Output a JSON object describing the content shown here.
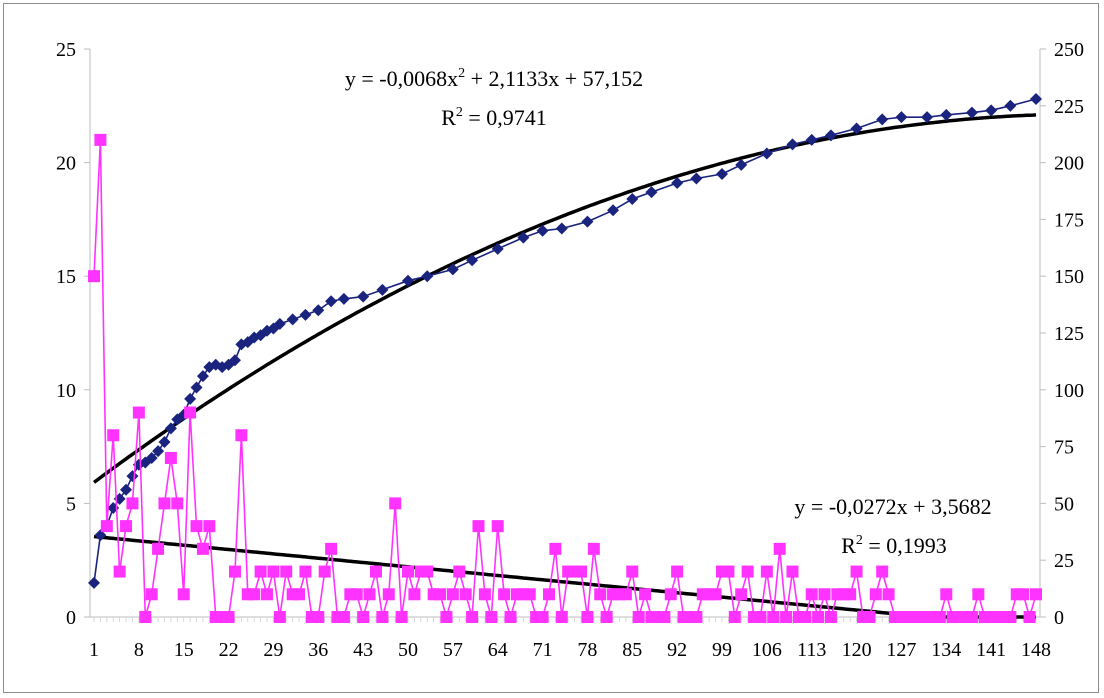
{
  "chart_data": {
    "type": "line",
    "title": "",
    "xlabel": "",
    "ylabel_left": "",
    "ylabel_right": "",
    "x_range": [
      1,
      148
    ],
    "x_tick_labels": [
      "1",
      "8",
      "15",
      "22",
      "29",
      "36",
      "43",
      "50",
      "57",
      "64",
      "71",
      "78",
      "85",
      "92",
      "99",
      "106",
      "113",
      "120",
      "127",
      "134",
      "141",
      "148"
    ],
    "ylim_left": [
      0,
      25
    ],
    "y_left_ticks": [
      "0",
      "5",
      "10",
      "15",
      "20",
      "25"
    ],
    "ylim_right": [
      0,
      250
    ],
    "y_right_ticks": [
      "0",
      "25",
      "50",
      "75",
      "100",
      "125",
      "150",
      "175",
      "200",
      "225",
      "250"
    ],
    "grid": false,
    "legend": "none",
    "colors": {
      "cumulative": "#1a237e",
      "daily": "#ff33ff",
      "trend": "#000000"
    },
    "series": [
      {
        "axis": "right",
        "marker": "diamond",
        "x": [
          1,
          2,
          3,
          4,
          5,
          6,
          7,
          8,
          9,
          10,
          11,
          12,
          13,
          14,
          15,
          16,
          17,
          18,
          19,
          20,
          21,
          22,
          23,
          24,
          25,
          26,
          27,
          28,
          29,
          30,
          32,
          34,
          36,
          38,
          40,
          43,
          46,
          50,
          53,
          57,
          60,
          64,
          68,
          71,
          74,
          78,
          82,
          85,
          88,
          92,
          95,
          99,
          102,
          106,
          110,
          113,
          116,
          120,
          124,
          127,
          131,
          134,
          138,
          141,
          144,
          148
        ],
        "values": [
          15,
          36,
          40,
          48,
          52,
          56,
          62,
          67,
          68,
          70,
          73,
          77,
          83,
          87,
          89,
          96,
          101,
          106,
          110,
          111,
          110,
          111,
          113,
          120,
          121,
          123,
          124,
          126,
          127,
          129,
          131,
          133,
          135,
          139,
          140,
          141,
          144,
          148,
          150,
          153,
          157,
          162,
          167,
          170,
          171,
          174,
          179,
          184,
          187,
          191,
          193,
          195,
          199,
          204,
          208,
          210,
          212,
          215,
          219,
          220,
          220,
          221,
          222,
          223,
          225,
          228
        ]
      },
      {
        "axis": "left",
        "marker": "square",
        "x": [
          1,
          2,
          3,
          4,
          5,
          6,
          7,
          8,
          9,
          10,
          11,
          12,
          13,
          14,
          15,
          16,
          17,
          18,
          19,
          20,
          21,
          22,
          23,
          24,
          25,
          26,
          27,
          28,
          29,
          30,
          31,
          32,
          33,
          34,
          35,
          36,
          37,
          38,
          39,
          40,
          41,
          42,
          43,
          44,
          45,
          46,
          47,
          48,
          49,
          50,
          51,
          52,
          53,
          54,
          55,
          56,
          57,
          58,
          59,
          60,
          61,
          62,
          63,
          64,
          65,
          66,
          67,
          68,
          69,
          70,
          71,
          72,
          73,
          74,
          75,
          76,
          77,
          78,
          79,
          80,
          81,
          82,
          83,
          84,
          85,
          86,
          87,
          88,
          89,
          90,
          91,
          92,
          93,
          94,
          95,
          96,
          97,
          98,
          99,
          100,
          101,
          102,
          103,
          104,
          105,
          106,
          107,
          108,
          109,
          110,
          111,
          112,
          113,
          114,
          115,
          116,
          117,
          118,
          119,
          120,
          121,
          122,
          123,
          124,
          125,
          126,
          127,
          128,
          129,
          130,
          131,
          132,
          133,
          134,
          135,
          136,
          137,
          138,
          139,
          140,
          141,
          142,
          143,
          144,
          145,
          146,
          147,
          148
        ],
        "values": [
          15,
          21,
          4,
          8,
          2,
          4,
          5,
          9,
          0,
          1,
          3,
          5,
          7,
          5,
          1,
          9,
          4,
          3,
          4,
          0,
          0,
          0,
          2,
          8,
          1,
          1,
          2,
          1,
          2,
          0,
          2,
          1,
          1,
          2,
          0,
          0,
          2,
          3,
          0,
          0,
          1,
          1,
          0,
          1,
          2,
          0,
          1,
          5,
          0,
          2,
          1,
          2,
          2,
          1,
          1,
          0,
          1,
          2,
          1,
          0,
          4,
          1,
          0,
          4,
          1,
          0,
          1,
          1,
          1,
          0,
          0,
          1,
          3,
          0,
          2,
          2,
          2,
          0,
          3,
          1,
          0,
          1,
          1,
          1,
          2,
          0,
          1,
          0,
          0,
          0,
          1,
          2,
          0,
          0,
          0,
          1,
          1,
          1,
          2,
          2,
          0,
          1,
          2,
          0,
          0,
          2,
          0,
          3,
          0,
          2,
          0,
          0,
          1,
          0,
          1,
          0,
          1,
          1,
          1,
          2,
          0,
          0,
          1,
          2,
          1,
          0,
          0,
          0,
          0,
          0,
          0,
          0,
          0,
          1,
          0,
          0,
          0,
          0,
          1,
          0,
          0,
          0,
          0,
          0,
          1,
          1,
          0,
          1
        ]
      },
      {
        "axis": "right",
        "marker": "none",
        "trendline": "polynomial",
        "equation_coefficients": [
          -0.0068,
          2.1133,
          57.152
        ],
        "equation_label": "y = -0,0068x",
        "equation_label_power": "2",
        "equation_label_rest": " + 2,1133x + 57,152",
        "r2_label": "R",
        "r2_label_power": "2",
        "r2_label_rest": " = 0,9741"
      },
      {
        "axis": "left",
        "marker": "none",
        "trendline": "linear",
        "equation_coefficients": [
          -0.0272,
          3.5682
        ],
        "equation_label": "y = -0,0272x + 3,5682",
        "r2_label": "R",
        "r2_label_power": "2",
        "r2_label_rest": " = 0,1993"
      }
    ]
  }
}
